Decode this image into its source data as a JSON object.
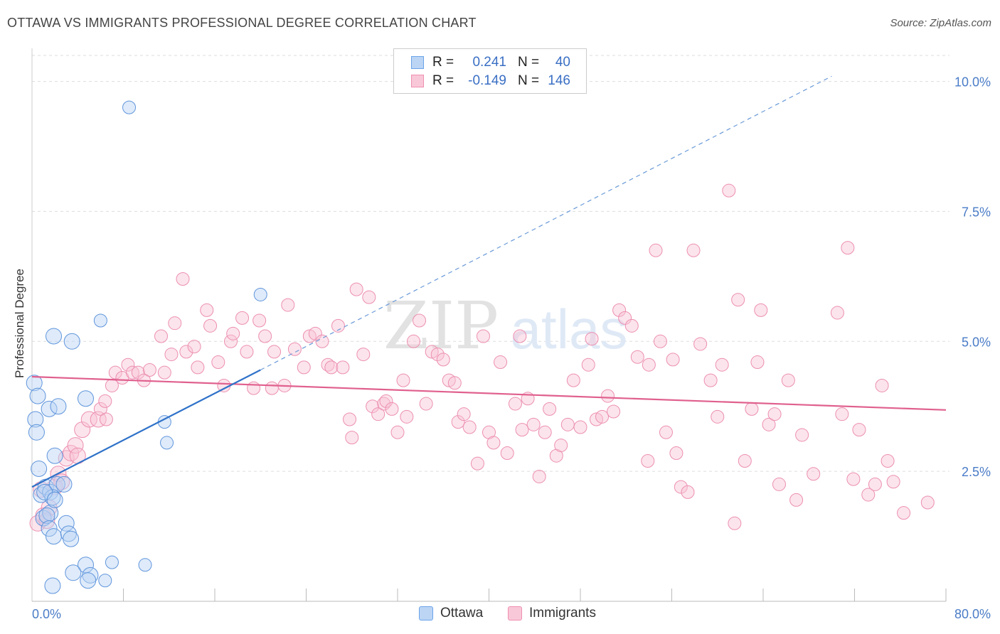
{
  "title": "OTTAWA VS IMMIGRANTS PROFESSIONAL DEGREE CORRELATION CHART",
  "source": "Source: ZipAtlas.com",
  "watermark": {
    "zip": "ZIP",
    "atlas": "atlas"
  },
  "legend": {
    "rows": [
      {
        "r_label": "R =",
        "r_value": "0.241",
        "n_label": "N =",
        "n_value": "40",
        "color": "#6aa3e8"
      },
      {
        "r_label": "R =",
        "r_value": "-0.149",
        "n_label": "N =",
        "n_value": "146",
        "color": "#f08fb0"
      }
    ]
  },
  "bottom_legend": {
    "ottawa": "Ottawa",
    "immigrants": "Immigrants"
  },
  "chart_data": {
    "type": "scatter",
    "title": "OTTAWA VS IMMIGRANTS PROFESSIONAL DEGREE CORRELATION CHART",
    "xlabel": "",
    "ylabel": "Professional Degree",
    "xlim": [
      0,
      80
    ],
    "ylim": [
      0,
      10.5
    ],
    "x_tick_labels": [
      "0.0%",
      "80.0%"
    ],
    "y_ticks": [
      2.5,
      5.0,
      7.5,
      10.0
    ],
    "y_tick_labels": [
      "2.5%",
      "5.0%",
      "7.5%",
      "10.0%"
    ],
    "grid": true,
    "legend_position": "top-center",
    "series": [
      {
        "name": "Ottawa",
        "color": "#6aa3e8",
        "regression": {
          "x0": 0,
          "y0": 2.2,
          "x1": 20,
          "y1": 4.45,
          "extend_to_x": 70,
          "extend_y": 10.1
        },
        "points": [
          [
            0.2,
            4.2
          ],
          [
            0.3,
            3.5
          ],
          [
            0.4,
            3.25
          ],
          [
            0.6,
            2.55
          ],
          [
            0.5,
            3.95
          ],
          [
            1.5,
            3.7
          ],
          [
            2.3,
            3.75
          ],
          [
            1.9,
            5.1
          ],
          [
            3.5,
            5.0
          ],
          [
            6.0,
            5.4
          ],
          [
            4.7,
            3.9
          ],
          [
            8.5,
            9.5
          ],
          [
            11.6,
            3.45
          ],
          [
            11.8,
            3.05
          ],
          [
            20.0,
            5.9
          ],
          [
            2.0,
            2.8
          ],
          [
            0.8,
            2.05
          ],
          [
            1.2,
            2.2
          ],
          [
            1.6,
            2.1
          ],
          [
            2.2,
            2.25
          ],
          [
            2.8,
            2.25
          ],
          [
            1.8,
            2.0
          ],
          [
            1.0,
            1.6
          ],
          [
            1.6,
            1.7
          ],
          [
            1.3,
            1.65
          ],
          [
            3.0,
            1.5
          ],
          [
            1.5,
            1.4
          ],
          [
            1.9,
            1.25
          ],
          [
            3.2,
            1.3
          ],
          [
            3.4,
            1.2
          ],
          [
            7.0,
            0.75
          ],
          [
            9.9,
            0.7
          ],
          [
            4.7,
            0.7
          ],
          [
            3.6,
            0.55
          ],
          [
            5.1,
            0.5
          ],
          [
            4.9,
            0.4
          ],
          [
            6.4,
            0.4
          ],
          [
            1.8,
            0.3
          ],
          [
            1.1,
            2.1
          ],
          [
            2.0,
            1.95
          ]
        ]
      },
      {
        "name": "Immigrants",
        "color": "#f08fb0",
        "regression": {
          "x0": 0,
          "y0": 4.32,
          "x1": 80,
          "y1": 3.68
        },
        "points": [
          [
            0.5,
            1.5
          ],
          [
            1.0,
            1.65
          ],
          [
            1.5,
            1.8
          ],
          [
            2.0,
            2.2
          ],
          [
            2.3,
            2.45
          ],
          [
            3.0,
            2.75
          ],
          [
            3.4,
            2.85
          ],
          [
            3.8,
            3.0
          ],
          [
            4.4,
            3.3
          ],
          [
            5.0,
            3.5
          ],
          [
            5.8,
            3.5
          ],
          [
            6.0,
            3.7
          ],
          [
            6.4,
            3.85
          ],
          [
            7.0,
            4.15
          ],
          [
            7.3,
            4.4
          ],
          [
            7.9,
            4.3
          ],
          [
            8.4,
            4.55
          ],
          [
            8.8,
            4.4
          ],
          [
            9.3,
            4.4
          ],
          [
            9.8,
            4.25
          ],
          [
            10.3,
            4.45
          ],
          [
            11.6,
            4.4
          ],
          [
            12.2,
            4.75
          ],
          [
            11.3,
            5.1
          ],
          [
            12.5,
            5.35
          ],
          [
            13.2,
            6.2
          ],
          [
            13.5,
            4.8
          ],
          [
            14.2,
            4.9
          ],
          [
            14.5,
            4.5
          ],
          [
            15.3,
            5.6
          ],
          [
            15.6,
            5.3
          ],
          [
            16.3,
            4.6
          ],
          [
            16.8,
            4.15
          ],
          [
            17.4,
            5.0
          ],
          [
            17.6,
            5.15
          ],
          [
            18.4,
            5.45
          ],
          [
            18.8,
            4.8
          ],
          [
            19.4,
            4.1
          ],
          [
            19.9,
            5.4
          ],
          [
            20.4,
            5.1
          ],
          [
            21.0,
            4.1
          ],
          [
            21.2,
            4.8
          ],
          [
            22.1,
            4.15
          ],
          [
            22.4,
            5.7
          ],
          [
            23.0,
            4.85
          ],
          [
            23.8,
            4.5
          ],
          [
            24.3,
            5.1
          ],
          [
            24.8,
            5.15
          ],
          [
            25.4,
            5.0
          ],
          [
            25.9,
            4.55
          ],
          [
            26.2,
            4.5
          ],
          [
            26.8,
            5.3
          ],
          [
            27.2,
            4.5
          ],
          [
            27.8,
            3.5
          ],
          [
            28.0,
            3.15
          ],
          [
            28.4,
            6.0
          ],
          [
            29.0,
            4.75
          ],
          [
            29.5,
            5.85
          ],
          [
            29.8,
            3.75
          ],
          [
            30.3,
            3.6
          ],
          [
            30.8,
            3.8
          ],
          [
            31.0,
            3.85
          ],
          [
            31.5,
            3.7
          ],
          [
            32.0,
            3.25
          ],
          [
            32.5,
            4.25
          ],
          [
            32.8,
            3.55
          ],
          [
            33.4,
            5.0
          ],
          [
            33.9,
            5.4
          ],
          [
            34.5,
            3.8
          ],
          [
            35.0,
            4.8
          ],
          [
            35.5,
            4.75
          ],
          [
            36.0,
            4.65
          ],
          [
            36.5,
            4.25
          ],
          [
            37.0,
            4.2
          ],
          [
            37.3,
            3.45
          ],
          [
            37.8,
            3.6
          ],
          [
            38.3,
            3.35
          ],
          [
            39.0,
            2.65
          ],
          [
            39.5,
            5.1
          ],
          [
            40.0,
            3.25
          ],
          [
            40.4,
            3.05
          ],
          [
            41.0,
            4.6
          ],
          [
            41.6,
            2.85
          ],
          [
            42.3,
            3.8
          ],
          [
            42.7,
            5.1
          ],
          [
            42.9,
            3.3
          ],
          [
            43.4,
            3.9
          ],
          [
            43.9,
            3.4
          ],
          [
            44.4,
            2.4
          ],
          [
            44.9,
            3.25
          ],
          [
            45.3,
            3.7
          ],
          [
            45.9,
            2.8
          ],
          [
            46.3,
            3.0
          ],
          [
            46.9,
            3.4
          ],
          [
            47.4,
            4.25
          ],
          [
            48.0,
            3.35
          ],
          [
            48.7,
            4.55
          ],
          [
            49.0,
            5.05
          ],
          [
            49.4,
            3.5
          ],
          [
            49.9,
            3.55
          ],
          [
            50.4,
            3.95
          ],
          [
            50.9,
            3.65
          ],
          [
            51.4,
            5.6
          ],
          [
            51.9,
            5.45
          ],
          [
            52.5,
            5.3
          ],
          [
            53.0,
            4.7
          ],
          [
            53.9,
            2.7
          ],
          [
            54.0,
            4.55
          ],
          [
            54.6,
            6.75
          ],
          [
            55.0,
            5.0
          ],
          [
            55.5,
            3.25
          ],
          [
            56.1,
            4.65
          ],
          [
            56.4,
            2.85
          ],
          [
            56.8,
            2.2
          ],
          [
            57.4,
            2.1
          ],
          [
            57.9,
            6.75
          ],
          [
            58.5,
            4.95
          ],
          [
            59.4,
            4.25
          ],
          [
            60.0,
            3.55
          ],
          [
            60.4,
            4.55
          ],
          [
            61.0,
            7.9
          ],
          [
            61.5,
            1.5
          ],
          [
            61.8,
            5.8
          ],
          [
            62.4,
            2.7
          ],
          [
            63.0,
            3.7
          ],
          [
            63.5,
            4.6
          ],
          [
            63.8,
            5.6
          ],
          [
            64.5,
            3.4
          ],
          [
            65.0,
            3.6
          ],
          [
            65.4,
            2.25
          ],
          [
            66.2,
            4.25
          ],
          [
            66.9,
            1.95
          ],
          [
            67.4,
            3.2
          ],
          [
            68.4,
            2.45
          ],
          [
            70.5,
            5.55
          ],
          [
            70.9,
            3.6
          ],
          [
            71.4,
            6.8
          ],
          [
            71.9,
            2.35
          ],
          [
            72.4,
            3.3
          ],
          [
            73.2,
            2.05
          ],
          [
            73.8,
            2.25
          ],
          [
            74.4,
            4.15
          ],
          [
            74.9,
            2.7
          ],
          [
            75.4,
            2.3
          ],
          [
            76.3,
            1.7
          ],
          [
            78.4,
            1.9
          ],
          [
            0.8,
            2.15
          ],
          [
            1.3,
            1.55
          ],
          [
            2.6,
            2.3
          ],
          [
            4.0,
            2.8
          ],
          [
            6.5,
            3.5
          ]
        ]
      }
    ]
  }
}
